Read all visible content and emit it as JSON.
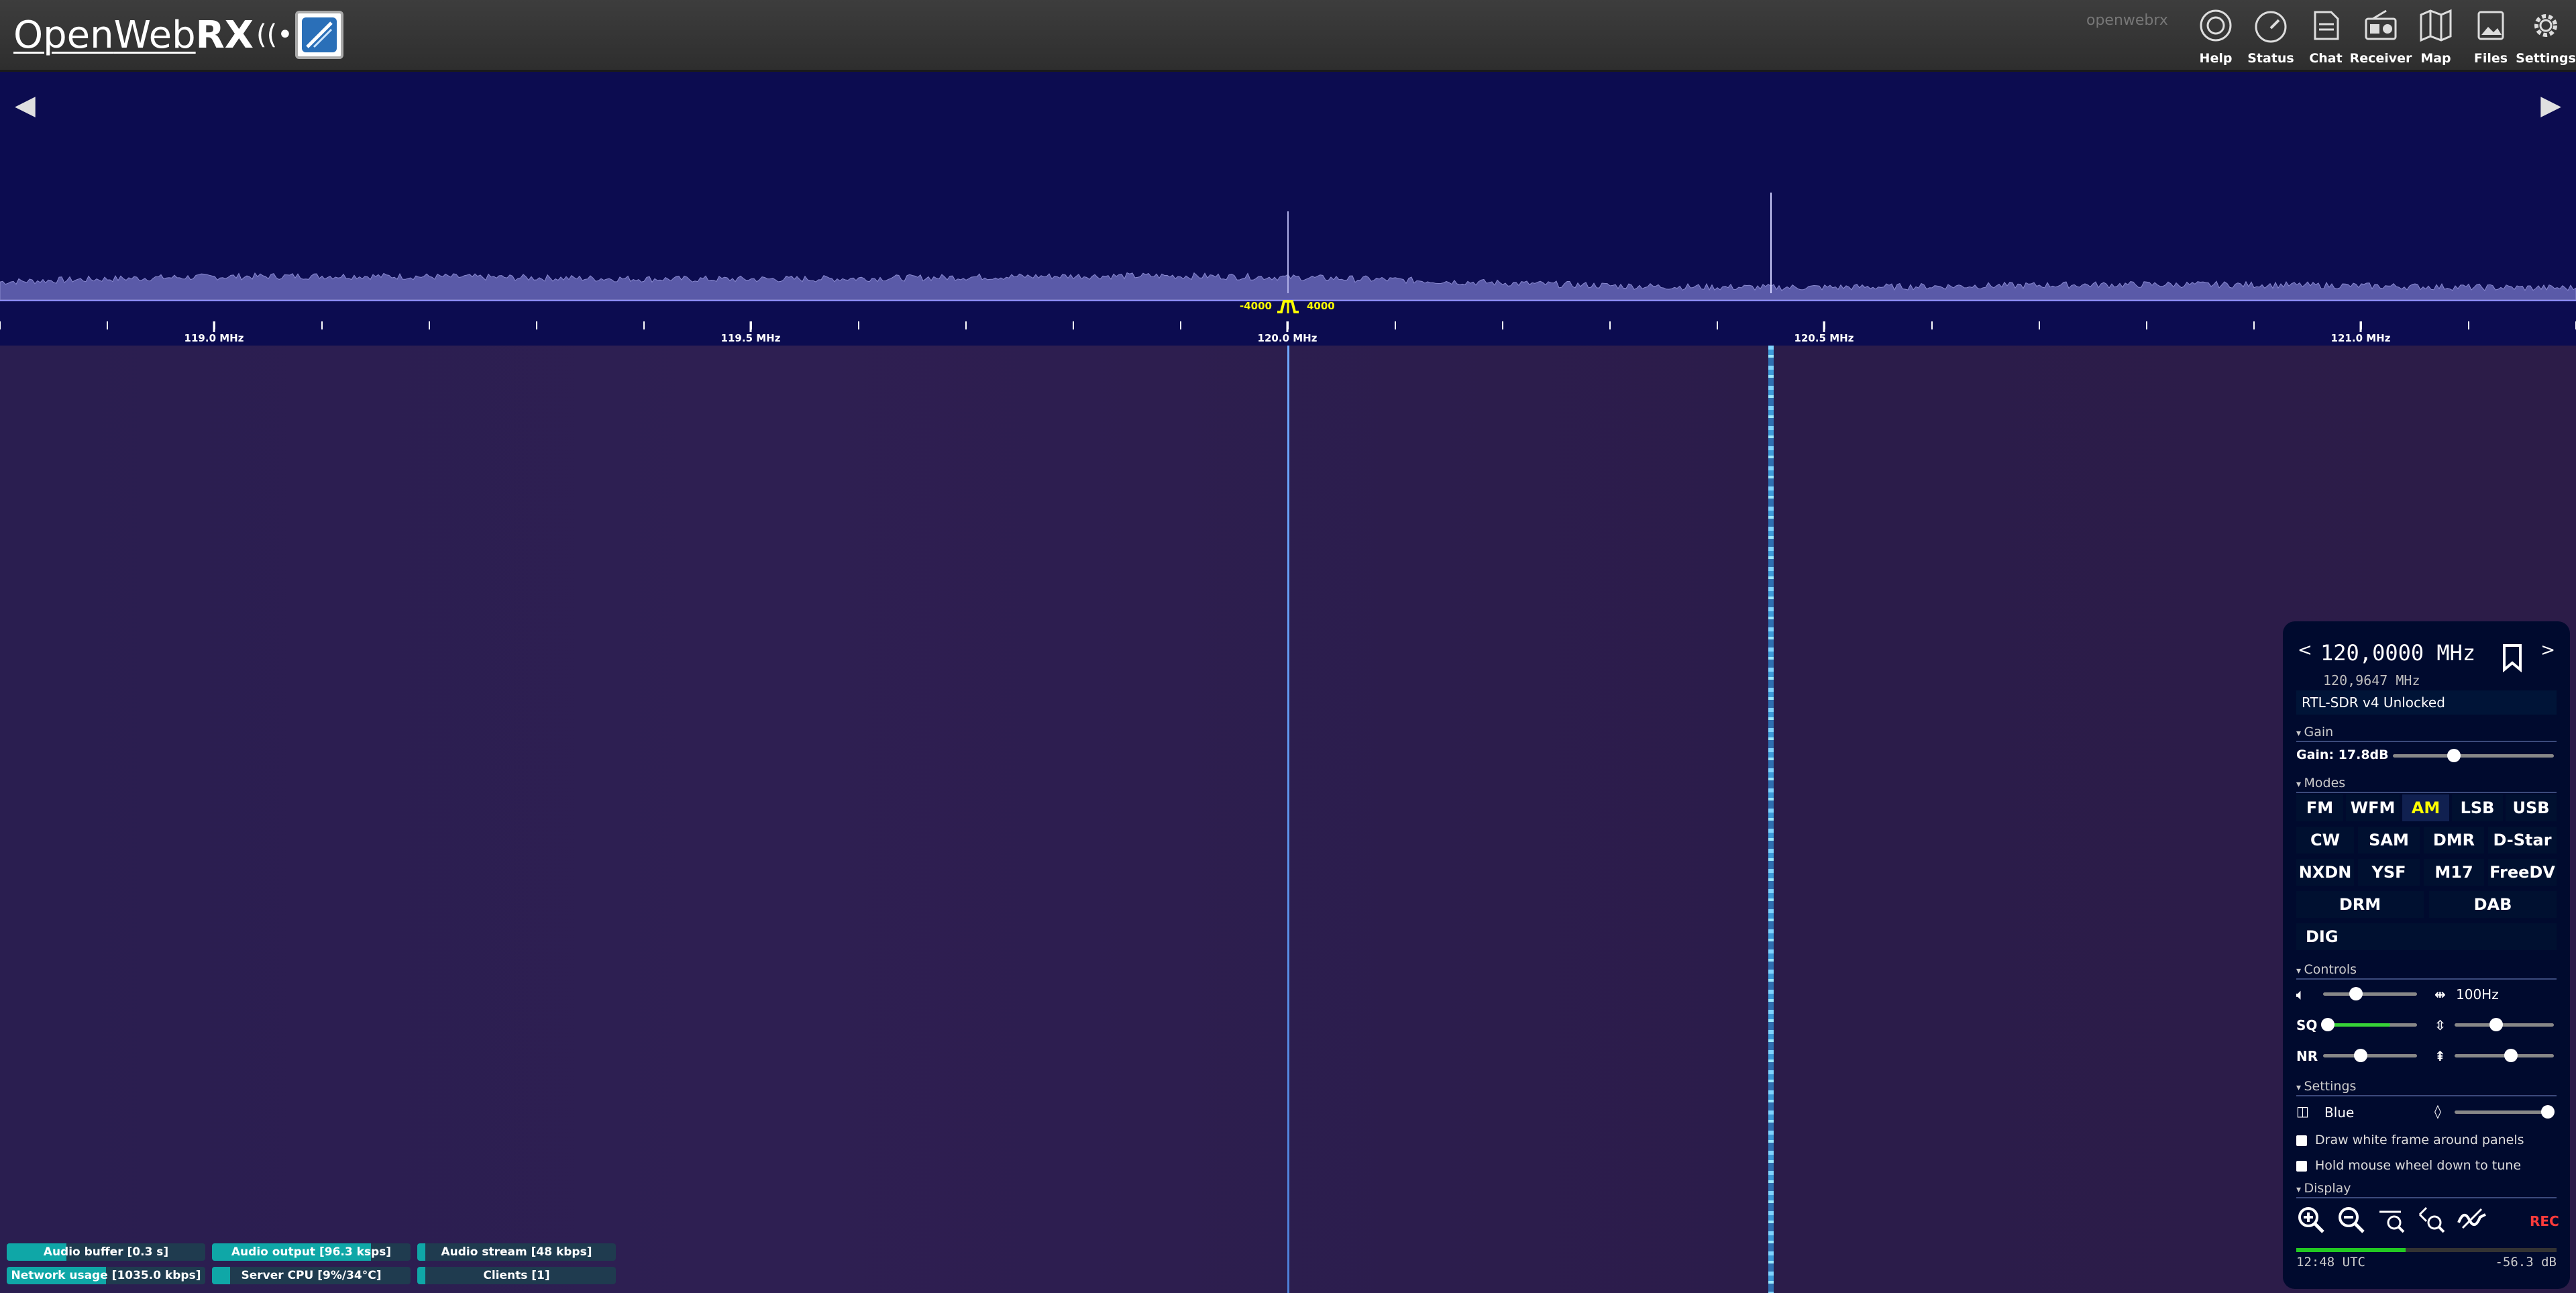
{
  "app": {
    "logo_prefix": "Open",
    "logo_mid": "Web",
    "logo_rx": "RX",
    "topbar_ghost": "openwebrx"
  },
  "nav": [
    {
      "label": "Help",
      "icon": "help-icon"
    },
    {
      "label": "Status",
      "icon": "status-gauge-icon"
    },
    {
      "label": "Chat",
      "icon": "chat-icon"
    },
    {
      "label": "Receiver",
      "icon": "receiver-radio-icon"
    },
    {
      "label": "Map",
      "icon": "map-icon"
    },
    {
      "label": "Files",
      "icon": "files-icon"
    },
    {
      "label": "Settings",
      "icon": "settings-gear-icon"
    }
  ],
  "scale": {
    "labels": [
      "119.0 MHz",
      "119.5 MHz",
      "120.0 MHz",
      "120.5 MHz",
      "121.0 MHz"
    ],
    "passband_low": "-4000",
    "passband_high": "4000"
  },
  "status_bars": [
    {
      "text": "Audio buffer [0.3 s]",
      "level": 0.3
    },
    {
      "text": "Audio output [96.3 ksps]",
      "level": 0.8
    },
    {
      "text": "Audio stream [48 kbps]",
      "level": 0.04
    },
    {
      "text": "Network usage [1035.0 kbps]",
      "level": 0.5
    },
    {
      "text": "Server CPU [9%/34°C]",
      "level": 0.09
    },
    {
      "text": "Clients [1]",
      "level": 0.04
    }
  ],
  "receiver": {
    "freq_prev": "<",
    "freq_next": ">",
    "frequency": "120,0000 MHz",
    "sub_frequency": "120,9647 MHz",
    "sdr_profile": "RTL-SDR v4 Unlocked",
    "sections": {
      "gain": "Gain",
      "modes": "Modes",
      "controls": "Controls",
      "settings": "Settings",
      "display": "Display"
    },
    "gain_label": "Gain: 17.8dB",
    "gain_level": 0.38,
    "modes": [
      "FM",
      "WFM",
      "AM",
      "LSB",
      "USB",
      "CW",
      "SAM",
      "DMR",
      "D-Star",
      "NXDN",
      "YSF",
      "M17",
      "FreeDV",
      "DRM",
      "DAB",
      "DIG"
    ],
    "active_mode": "AM",
    "volume_level": 0.35,
    "step_value": "100Hz",
    "sq_label": "SQ",
    "sq_level": 0.05,
    "nr_label": "NR",
    "nr_level": 0.4,
    "zoom_level": 0.42,
    "contrast_level": 0.57,
    "theme": "Blue",
    "opacity_level": 0.94,
    "checkbox_frame": "Draw white frame around panels",
    "checkbox_wheel": "Hold mouse wheel down to tune",
    "rec": "REC",
    "time": "12:48 UTC",
    "level_db": "-56.3 dB",
    "signal_level": 0.42
  }
}
